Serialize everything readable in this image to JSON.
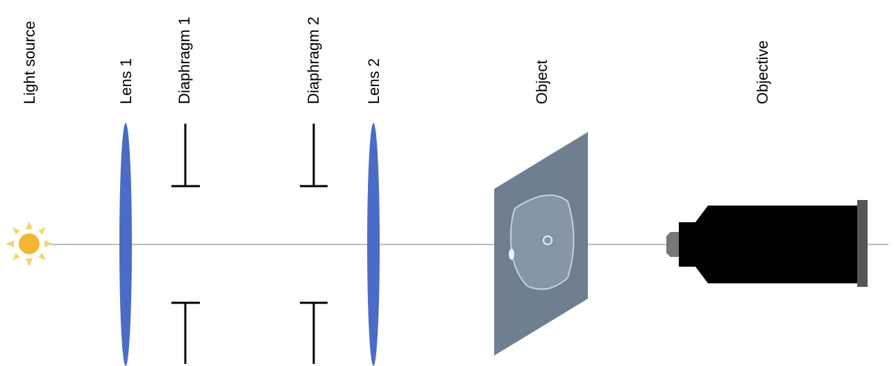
{
  "nodes": [
    {
      "label": "Light source"
    },
    {
      "label": "Lens 1"
    },
    {
      "label": "Diaphragm 1"
    },
    {
      "label": "Diaphragm 2"
    },
    {
      "label": "Lens 2"
    },
    {
      "label": "Object"
    },
    {
      "label": "Objective"
    }
  ]
}
